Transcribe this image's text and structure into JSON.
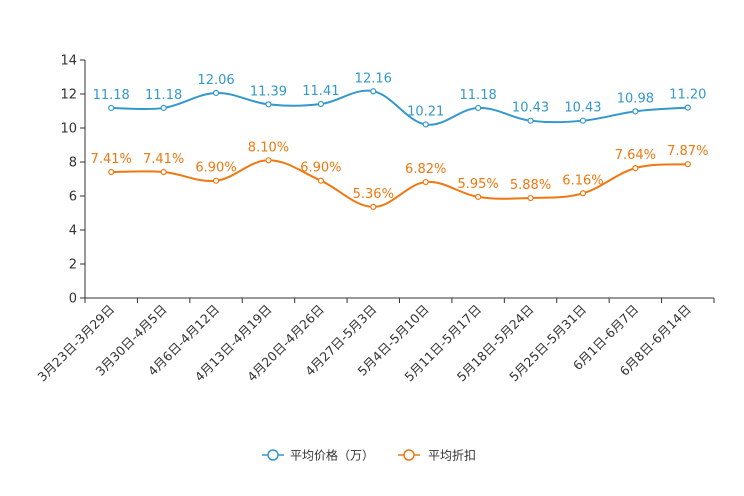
{
  "chart_data": {
    "type": "line",
    "categories": [
      "3月23日-3月29日",
      "3月30日-4月5日",
      "4月6日-4月12日",
      "4月13日-4月19日",
      "4月20日-4月26日",
      "4月27日-5月3日",
      "5月4日-5月10日",
      "5月11日-5月17日",
      "5月18日-5月24日",
      "5月25日-5月31日",
      "6月1日-6月7日",
      "6月8日-6月14日"
    ],
    "ylim": [
      0,
      14
    ],
    "yticks": [
      0,
      2,
      4,
      6,
      8,
      10,
      12,
      14
    ],
    "series": [
      {
        "name": "平均价格（万）",
        "color": "#3399CC",
        "values": [
          11.18,
          11.18,
          12.06,
          11.39,
          11.41,
          12.16,
          10.21,
          11.18,
          10.43,
          10.43,
          10.98,
          11.2
        ],
        "labels": [
          "11.18",
          "11.18",
          "12.06",
          "11.39",
          "11.41",
          "12.16",
          "10.21",
          "11.18",
          "10.43",
          "10.43",
          "10.98",
          "11.20"
        ]
      },
      {
        "name": "平均折扣",
        "color": "#F07810",
        "values": [
          7.41,
          7.41,
          6.9,
          8.1,
          6.9,
          5.36,
          6.82,
          5.95,
          5.88,
          6.16,
          7.64,
          7.87
        ],
        "labels": [
          "7.41%",
          "7.41%",
          "6.90%",
          "8.10%",
          "6.90%",
          "5.36%",
          "6.82%",
          "5.95%",
          "5.88%",
          "6.16%",
          "7.64%",
          "7.87%"
        ]
      }
    ],
    "legend_position": "bottom-center"
  }
}
